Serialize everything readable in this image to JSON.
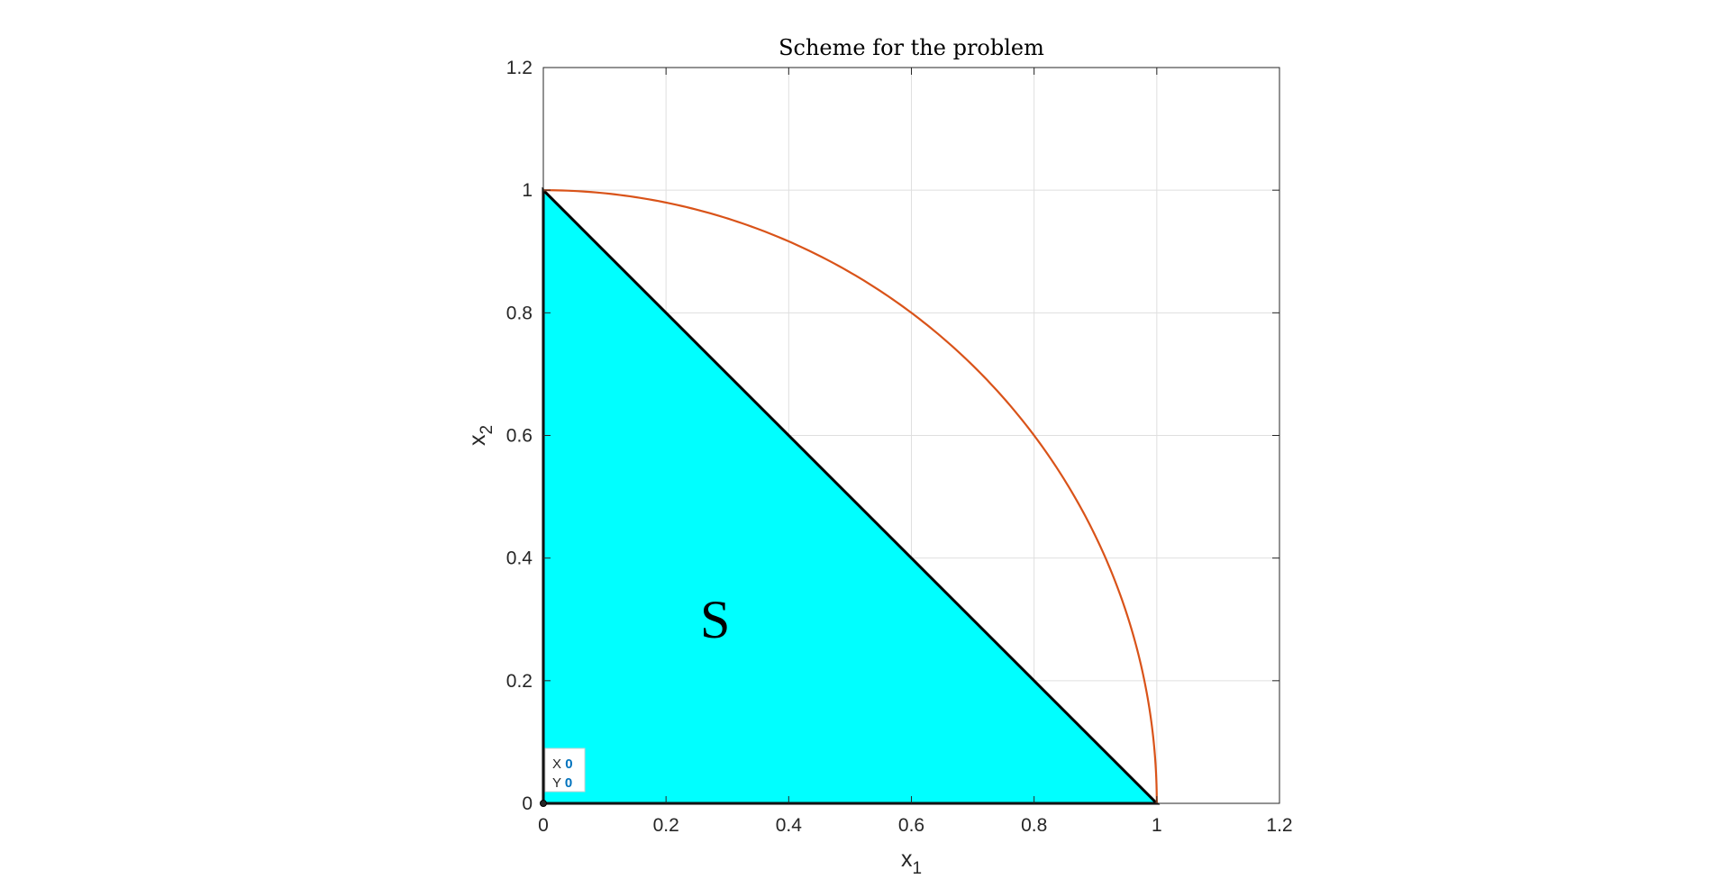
{
  "chart_data": {
    "type": "area",
    "title": "Scheme for the problem",
    "xlabel": {
      "base": "x",
      "sub": "1"
    },
    "ylabel": {
      "base": "x",
      "sub": "2"
    },
    "xlim": [
      0,
      1.2
    ],
    "ylim": [
      0,
      1.2
    ],
    "xticks": [
      0,
      0.2,
      0.4,
      0.6,
      0.8,
      1,
      1.2
    ],
    "yticks": [
      0,
      0.2,
      0.4,
      0.6,
      0.8,
      1,
      1.2
    ],
    "xtick_labels": [
      "0",
      "0.2",
      "0.4",
      "0.6",
      "0.8",
      "1",
      "1.2"
    ],
    "ytick_labels": [
      "0",
      "0.2",
      "0.4",
      "0.6",
      "0.8",
      "1",
      "1.2"
    ],
    "grid": true,
    "fill_region": {
      "label": "S",
      "label_position": [
        0.28,
        0.3
      ],
      "x": [
        0,
        1,
        0
      ],
      "y": [
        0,
        0,
        1
      ],
      "color": "#00ffff",
      "edge_color": "#000000"
    },
    "curve": {
      "description_points": "quarter circle of radius 1 centered at origin",
      "radius": 1,
      "color": "#d95319"
    },
    "datatip": {
      "x_label": "X",
      "y_label": "Y",
      "x_value": "0",
      "y_value": "0"
    }
  }
}
